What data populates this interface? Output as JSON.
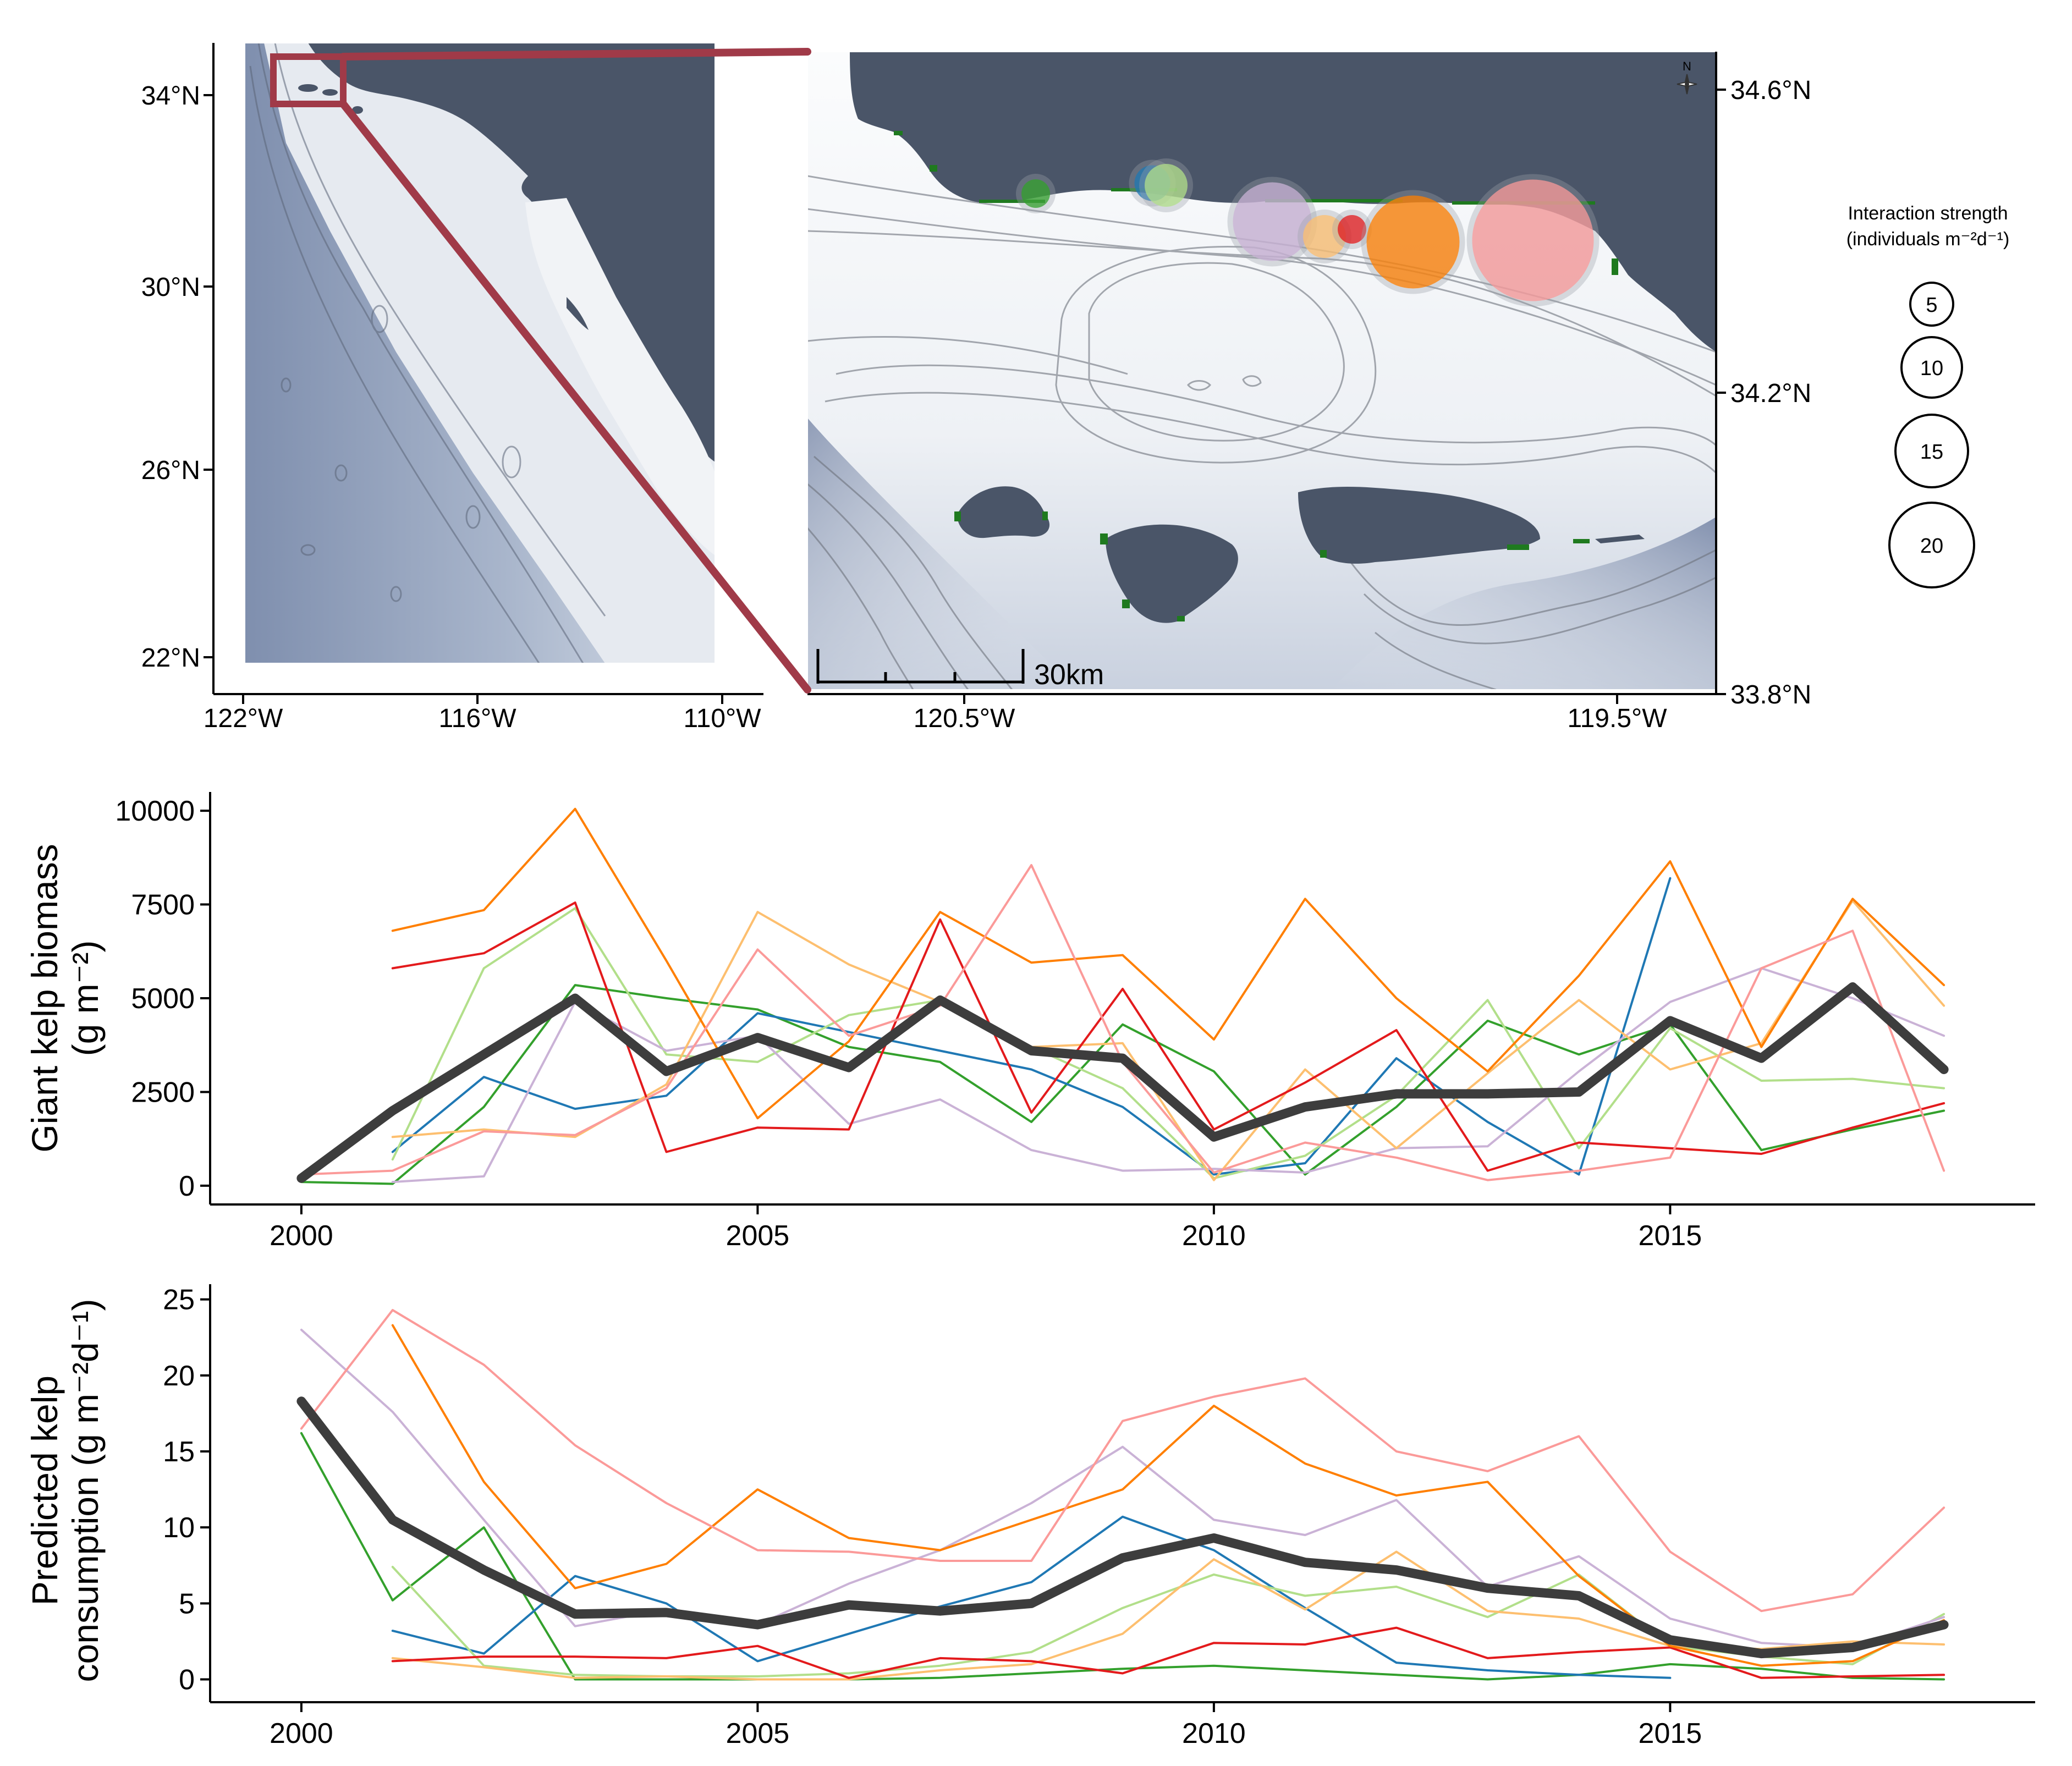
{
  "colors": {
    "land": "#4a5568",
    "sea_shallow": "#f4f6f9",
    "sea_deep": "#8796b3",
    "kelp": "#1f7a1f",
    "inset_frame": "#a03a48",
    "mean_line": "#3d3d3d"
  },
  "overview_map": {
    "lat_labels": [
      "34°N",
      "30°N",
      "26°N",
      "22°N"
    ],
    "lon_labels": [
      "122°W",
      "116°W",
      "110°W"
    ]
  },
  "zoom_map": {
    "lat_labels": [
      "34.6°N",
      "34.2°N",
      "33.8°N"
    ],
    "lon_labels": [
      "120.5°W",
      "119.5°W"
    ],
    "scale_bar": "30km",
    "north_arrow": "N",
    "site_circles": [
      {
        "color": "#33a02c",
        "strength": 4
      },
      {
        "color": "#1f78b4",
        "strength": 5
      },
      {
        "color": "#b2df8a",
        "strength": 6
      },
      {
        "color": "#cab2d6",
        "strength": 11
      },
      {
        "color": "#fdbf6f",
        "strength": 6
      },
      {
        "color": "#e31a1c",
        "strength": 4
      },
      {
        "color": "#ff7f00",
        "strength": 13
      },
      {
        "color": "#fb9a99",
        "strength": 17
      }
    ]
  },
  "legend": {
    "title_line1": "Interaction strength",
    "title_line2": "(individuals m⁻²d⁻¹)",
    "sizes": [
      5,
      10,
      15,
      20
    ]
  },
  "chart_data": [
    {
      "type": "line",
      "ylabel_line1": "Giant kelp biomass",
      "ylabel_line2": "(g m⁻²)",
      "xlabel": "",
      "xlim": [
        1999,
        2019
      ],
      "ylim": [
        -500,
        10500
      ],
      "xticks": [
        2000,
        2005,
        2010,
        2015
      ],
      "yticks": [
        0,
        2500,
        5000,
        7500,
        10000
      ],
      "x": [
        2000,
        2001,
        2002,
        2003,
        2004,
        2005,
        2006,
        2007,
        2008,
        2009,
        2010,
        2011,
        2012,
        2013,
        2014,
        2015,
        2016,
        2017,
        2018
      ],
      "series": [
        {
          "color": "#33a02c",
          "values": [
            100,
            50,
            2100,
            5350,
            5000,
            4700,
            3700,
            3300,
            1700,
            4300,
            3050,
            300,
            2100,
            4400,
            3500,
            4300,
            950,
            1500,
            2000
          ]
        },
        {
          "color": "#1f78b4",
          "values": [
            null,
            900,
            2900,
            2050,
            2400,
            4600,
            4100,
            3600,
            3100,
            2100,
            300,
            600,
            3400,
            1700,
            300,
            8200,
            null,
            null,
            null
          ]
        },
        {
          "color": "#b2df8a",
          "values": [
            null,
            700,
            5800,
            7400,
            3500,
            3300,
            4550,
            4950,
            3700,
            2600,
            200,
            800,
            2400,
            4950,
            1000,
            4200,
            2800,
            2850,
            2600
          ]
        },
        {
          "color": "#cab2d6",
          "values": [
            null,
            100,
            250,
            4900,
            3600,
            4000,
            1650,
            2300,
            950,
            400,
            450,
            350,
            1000,
            1050,
            3050,
            4900,
            5800,
            5000,
            4000
          ]
        },
        {
          "color": "#fdbf6f",
          "values": [
            null,
            1300,
            1500,
            1300,
            2700,
            7300,
            5900,
            4900,
            3700,
            3800,
            150,
            3100,
            1000,
            3000,
            4950,
            3100,
            3800,
            7600,
            4800
          ]
        },
        {
          "color": "#e31a1c",
          "values": [
            null,
            5800,
            6200,
            7550,
            900,
            1550,
            1500,
            7100,
            1950,
            5250,
            1500,
            2750,
            4150,
            400,
            1150,
            1000,
            850,
            1550,
            2200
          ]
        },
        {
          "color": "#ff7f00",
          "values": [
            null,
            6800,
            7350,
            10050,
            6000,
            1800,
            3850,
            7300,
            5950,
            6150,
            3900,
            7650,
            5000,
            3050,
            5600,
            8650,
            3700,
            7650,
            5350
          ]
        },
        {
          "color": "#fb9a99",
          "values": [
            300,
            400,
            1450,
            1350,
            2600,
            6300,
            4000,
            4800,
            8550,
            3300,
            350,
            1150,
            750,
            150,
            400,
            750,
            5800,
            6800,
            400
          ]
        },
        {
          "color": "#3d3d3d",
          "mean": true,
          "values": [
            200,
            2000,
            3500,
            5000,
            3050,
            3950,
            3150,
            4950,
            3600,
            3400,
            1300,
            2100,
            2450,
            2450,
            2500,
            4400,
            3400,
            5300,
            3100
          ]
        }
      ]
    },
    {
      "type": "line",
      "ylabel_line1": "Predicted kelp",
      "ylabel_line2": "consumption (g m⁻²d⁻¹)",
      "xlabel": "",
      "xlim": [
        1999,
        2019
      ],
      "ylim": [
        -1.5,
        26
      ],
      "xticks": [
        2000,
        2005,
        2010,
        2015
      ],
      "yticks": [
        0,
        5,
        10,
        15,
        20,
        25
      ],
      "x": [
        2000,
        2001,
        2002,
        2003,
        2004,
        2005,
        2006,
        2007,
        2008,
        2009,
        2010,
        2011,
        2012,
        2013,
        2014,
        2015,
        2016,
        2017,
        2018
      ],
      "series": [
        {
          "color": "#33a02c",
          "values": [
            16.2,
            5.2,
            10.0,
            0.0,
            0.0,
            0.0,
            0.0,
            0.1,
            0.4,
            0.7,
            0.9,
            0.6,
            0.3,
            0.0,
            0.3,
            1.0,
            0.7,
            0.1,
            0.0
          ]
        },
        {
          "color": "#1f78b4",
          "values": [
            null,
            3.2,
            1.7,
            6.8,
            5.0,
            1.2,
            3.0,
            4.8,
            6.4,
            10.7,
            8.5,
            4.7,
            1.1,
            0.6,
            0.3,
            0.1,
            null,
            null,
            null
          ]
        },
        {
          "color": "#b2df8a",
          "values": [
            null,
            7.4,
            0.9,
            0.3,
            0.2,
            0.2,
            0.4,
            0.9,
            1.8,
            4.7,
            6.9,
            5.5,
            6.1,
            4.1,
            6.9,
            2.2,
            1.5,
            1.0,
            4.3
          ]
        },
        {
          "color": "#cab2d6",
          "values": [
            23.0,
            17.6,
            10.5,
            3.5,
            4.6,
            3.6,
            6.3,
            8.5,
            11.6,
            15.3,
            10.5,
            9.5,
            11.8,
            6.1,
            8.1,
            4.0,
            2.4,
            2.1,
            4.1
          ]
        },
        {
          "color": "#fdbf6f",
          "values": [
            null,
            1.4,
            0.8,
            0.1,
            0.2,
            0.0,
            0.0,
            0.6,
            1.0,
            3.0,
            7.9,
            4.6,
            8.4,
            4.5,
            4.0,
            2.2,
            2.0,
            2.5,
            2.3
          ]
        },
        {
          "color": "#e31a1c",
          "values": [
            null,
            1.2,
            1.5,
            1.5,
            1.4,
            2.2,
            0.1,
            1.4,
            1.2,
            0.4,
            2.4,
            2.3,
            3.4,
            1.4,
            1.8,
            2.1,
            0.1,
            0.2,
            0.3
          ]
        },
        {
          "color": "#ff7f00",
          "values": [
            null,
            23.3,
            13.0,
            6.0,
            7.6,
            12.5,
            9.3,
            8.5,
            10.5,
            12.5,
            18.0,
            14.2,
            12.1,
            13.0,
            6.8,
            2.2,
            0.9,
            1.2,
            3.9
          ]
        },
        {
          "color": "#fb9a99",
          "values": [
            16.5,
            24.3,
            20.7,
            15.4,
            11.6,
            8.5,
            8.4,
            7.8,
            7.8,
            17.0,
            18.6,
            19.8,
            15.0,
            13.7,
            16.0,
            8.4,
            4.5,
            5.6,
            11.3
          ]
        },
        {
          "color": "#3d3d3d",
          "mean": true,
          "values": [
            18.3,
            10.5,
            7.2,
            4.3,
            4.4,
            3.6,
            4.9,
            4.5,
            5.0,
            8.0,
            9.3,
            7.7,
            7.2,
            6.0,
            5.5,
            2.6,
            1.7,
            2.1,
            3.6
          ]
        }
      ]
    }
  ]
}
